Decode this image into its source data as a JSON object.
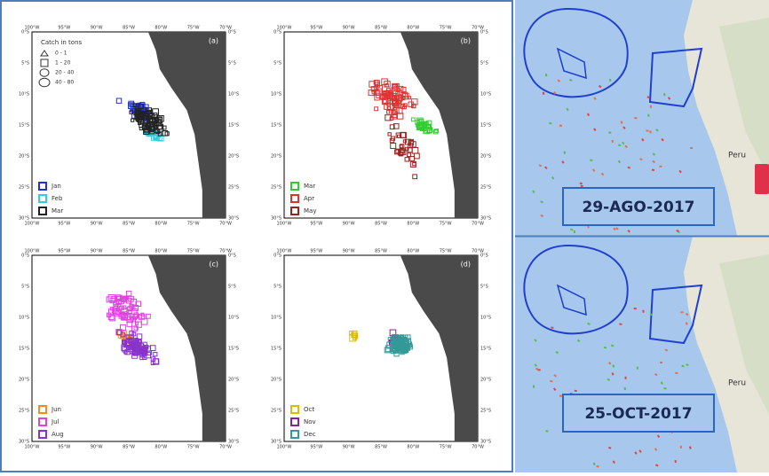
{
  "panels": [
    {
      "label": "(a)",
      "legend": [
        {
          "name": "Jan",
          "color": "#2233cc"
        },
        {
          "name": "Feb",
          "color": "#33ccdd"
        },
        {
          "name": "Mar",
          "color": "#222222"
        }
      ]
    },
    {
      "label": "(b)",
      "legend": [
        {
          "name": "Mar",
          "color": "#33cc33"
        },
        {
          "name": "Apr",
          "color": "#dd3333"
        },
        {
          "name": "May",
          "color": "#992222"
        }
      ]
    },
    {
      "label": "(c)",
      "legend": [
        {
          "name": "Jun",
          "color": "#ff8822"
        },
        {
          "name": "Jul",
          "color": "#dd44dd"
        },
        {
          "name": "Aug",
          "color": "#8833cc"
        }
      ]
    },
    {
      "label": "(d)",
      "legend": [
        {
          "name": "Oct",
          "color": "#ddbb00"
        },
        {
          "name": "Nov",
          "color": "#882299"
        },
        {
          "name": "Dec",
          "color": "#339999"
        }
      ]
    }
  ],
  "size_legend": {
    "title": "Catch in tons",
    "items": [
      "0 - 1",
      "1 - 20",
      "20 - 40",
      "40 - 80"
    ]
  },
  "lon_ticks": [
    "100°W",
    "95°W",
    "90°W",
    "85°W",
    "80°W",
    "75°W",
    "70°W"
  ],
  "lat_ticks": [
    "0°S",
    "5°S",
    "10°S",
    "15°S",
    "20°S",
    "25°S",
    "30°S"
  ],
  "maps": [
    {
      "date": "29-AGO-2017",
      "place": "Peru"
    },
    {
      "date": "25-OCT-2017",
      "place": "Peru"
    }
  ]
}
